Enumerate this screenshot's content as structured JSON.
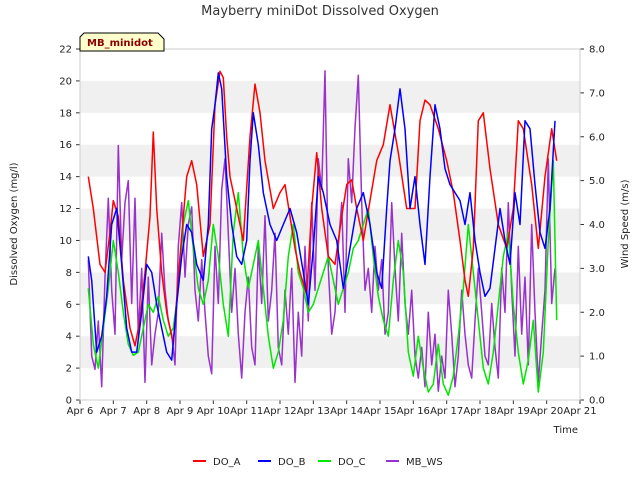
{
  "chart_data": {
    "type": "line",
    "title": "Mayberry miniDot Dissolved Oxygen",
    "site_label": "MB_minidot",
    "xlabel": "Time",
    "ylabel": "Dissolved Oxygen (mg/l)",
    "y2label": "Wind Speed (m/s)",
    "xlim": [
      6,
      21
    ],
    "ylim": [
      0,
      22
    ],
    "y2lim": [
      0,
      8
    ],
    "x_ticks": [
      6,
      7,
      8,
      9,
      10,
      11,
      12,
      13,
      14,
      15,
      16,
      17,
      18,
      19,
      20,
      21
    ],
    "x_tick_labels": [
      "Apr 6",
      "Apr 7",
      "Apr 8",
      "Apr 9",
      "Apr 10",
      "Apr 11",
      "Apr 12",
      "Apr 13",
      "Apr 14",
      "Apr 15",
      "Apr 16",
      "Apr 17",
      "Apr 18",
      "Apr 19",
      "Apr 20",
      "Apr 21"
    ],
    "y_ticks": [
      0,
      2,
      4,
      6,
      8,
      10,
      12,
      14,
      16,
      18,
      20,
      22
    ],
    "y2_ticks": [
      "0.0",
      "1.0",
      "2.0",
      "3.0",
      "4.0",
      "5.0",
      "6.0",
      "7.0",
      "8.0"
    ],
    "grid": "horizontal bands",
    "legend_position": "bottom",
    "series": [
      {
        "name": "DO_A",
        "color": "#ff0000",
        "axis": "left",
        "x": [
          6.25,
          6.4,
          6.6,
          6.75,
          6.9,
          7.0,
          7.15,
          7.3,
          7.5,
          7.65,
          7.8,
          7.95,
          8.1,
          8.2,
          8.3,
          8.45,
          8.6,
          8.8,
          9.0,
          9.2,
          9.35,
          9.5,
          9.7,
          9.9,
          10.05,
          10.2,
          10.3,
          10.4,
          10.5,
          10.7,
          10.9,
          11.1,
          11.25,
          11.4,
          11.55,
          11.8,
          12.0,
          12.15,
          12.3,
          12.45,
          12.6,
          12.8,
          12.95,
          13.1,
          13.25,
          13.45,
          13.65,
          13.85,
          14.0,
          14.15,
          14.3,
          14.5,
          14.7,
          14.9,
          15.1,
          15.3,
          15.55,
          15.8,
          16.05,
          16.2,
          16.35,
          16.5,
          16.75,
          17.0,
          17.2,
          17.4,
          17.55,
          17.65,
          17.8,
          17.95,
          18.1,
          18.3,
          18.55,
          18.8,
          19.0,
          19.15,
          19.3,
          19.55,
          19.75,
          19.95,
          20.15,
          20.3
        ],
        "y": [
          14.0,
          12.0,
          8.5,
          8.0,
          10.5,
          12.5,
          11.5,
          7.5,
          4.5,
          3.4,
          5.0,
          8.0,
          11.5,
          16.8,
          12.0,
          8.0,
          5.5,
          3.5,
          9.0,
          14.0,
          15.0,
          13.5,
          9.0,
          11.0,
          18.5,
          20.6,
          20.2,
          16.5,
          14.0,
          12.0,
          10.0,
          16.5,
          19.8,
          18.0,
          15.0,
          12.0,
          13.0,
          13.5,
          11.5,
          9.5,
          8.0,
          6.6,
          12.0,
          15.5,
          12.0,
          9.0,
          8.5,
          11.5,
          13.5,
          13.8,
          12.0,
          10.0,
          12.5,
          15.0,
          16.0,
          18.5,
          15.5,
          12.0,
          12.0,
          17.5,
          18.8,
          18.5,
          17.0,
          15.0,
          13.0,
          10.0,
          7.5,
          6.5,
          9.5,
          17.5,
          18.0,
          14.5,
          11.0,
          9.5,
          12.0,
          17.5,
          17.0,
          13.5,
          9.5,
          14.0,
          17.0,
          15.0
        ]
      },
      {
        "name": "DO_B",
        "color": "#0000ff",
        "axis": "left",
        "x": [
          6.25,
          6.35,
          6.5,
          6.65,
          6.8,
          6.95,
          7.1,
          7.25,
          7.4,
          7.55,
          7.7,
          7.85,
          8.0,
          8.15,
          8.3,
          8.45,
          8.6,
          8.75,
          8.9,
          9.05,
          9.2,
          9.35,
          9.5,
          9.7,
          9.85,
          9.95,
          10.05,
          10.15,
          10.25,
          10.4,
          10.55,
          10.7,
          10.85,
          11.0,
          11.1,
          11.2,
          11.35,
          11.5,
          11.7,
          11.9,
          12.1,
          12.3,
          12.5,
          12.7,
          12.85,
          13.0,
          13.15,
          13.3,
          13.5,
          13.7,
          13.9,
          14.1,
          14.3,
          14.5,
          14.7,
          14.9,
          15.05,
          15.2,
          15.3,
          15.45,
          15.6,
          15.75,
          15.9,
          16.05,
          16.2,
          16.35,
          16.5,
          16.65,
          16.8,
          16.95,
          17.1,
          17.25,
          17.4,
          17.55,
          17.7,
          17.85,
          18.0,
          18.15,
          18.3,
          18.45,
          18.6,
          18.75,
          18.9,
          19.05,
          19.2,
          19.35,
          19.5,
          19.65,
          19.8,
          19.95,
          20.1,
          20.25
        ],
        "y": [
          9.0,
          7.5,
          3.0,
          4.0,
          6.5,
          11.0,
          12.0,
          8.5,
          4.5,
          3.0,
          3.0,
          5.5,
          8.5,
          8.0,
          6.0,
          4.5,
          3.0,
          2.5,
          6.0,
          9.0,
          11.0,
          10.5,
          8.5,
          7.5,
          11.0,
          17.0,
          18.5,
          20.5,
          19.5,
          14.0,
          11.0,
          9.0,
          8.5,
          10.0,
          15.0,
          18.0,
          16.0,
          13.0,
          11.0,
          10.0,
          11.0,
          12.0,
          10.5,
          8.0,
          6.0,
          9.5,
          14.0,
          13.0,
          11.0,
          10.0,
          7.0,
          9.5,
          12.0,
          13.0,
          11.0,
          8.0,
          7.0,
          12.0,
          15.0,
          17.0,
          19.5,
          17.0,
          12.0,
          14.0,
          11.0,
          8.5,
          14.0,
          18.5,
          17.0,
          14.5,
          13.5,
          13.0,
          12.5,
          11.0,
          13.0,
          10.0,
          8.0,
          6.5,
          7.0,
          9.5,
          12.0,
          10.0,
          8.5,
          13.0,
          11.0,
          17.5,
          17.0,
          13.5,
          10.5,
          9.5,
          12.0,
          17.5
        ]
      },
      {
        "name": "DO_C",
        "color": "#00e600",
        "axis": "left",
        "x": [
          6.25,
          6.4,
          6.55,
          6.7,
          6.85,
          7.0,
          7.15,
          7.3,
          7.45,
          7.6,
          7.75,
          7.9,
          8.05,
          8.2,
          8.35,
          8.5,
          8.65,
          8.8,
          8.95,
          9.1,
          9.25,
          9.4,
          9.55,
          9.7,
          9.85,
          10.0,
          10.15,
          10.3,
          10.45,
          10.6,
          10.75,
          10.9,
          11.05,
          11.2,
          11.35,
          11.5,
          11.65,
          11.8,
          11.95,
          12.1,
          12.25,
          12.4,
          12.55,
          12.7,
          12.85,
          13.0,
          13.15,
          13.3,
          13.45,
          13.6,
          13.75,
          13.9,
          14.05,
          14.2,
          14.35,
          14.5,
          14.65,
          14.8,
          14.95,
          15.1,
          15.25,
          15.4,
          15.55,
          15.7,
          15.85,
          16.0,
          16.15,
          16.3,
          16.45,
          16.6,
          16.75,
          16.9,
          17.05,
          17.2,
          17.35,
          17.5,
          17.65,
          17.8,
          17.95,
          18.1,
          18.25,
          18.4,
          18.55,
          18.7,
          18.85,
          19.0,
          19.15,
          19.3,
          19.45,
          19.6,
          19.75,
          19.9,
          20.05,
          20.2,
          20.3
        ],
        "y": [
          7.0,
          3.5,
          2.0,
          4.5,
          7.0,
          10.0,
          8.0,
          5.5,
          3.5,
          2.8,
          3.0,
          4.5,
          6.0,
          5.5,
          6.5,
          5.0,
          4.0,
          4.5,
          7.0,
          11.0,
          12.5,
          9.5,
          7.0,
          6.0,
          7.5,
          11.0,
          9.0,
          6.0,
          4.0,
          10.5,
          13.0,
          9.0,
          7.0,
          8.5,
          10.0,
          7.0,
          4.0,
          2.0,
          3.0,
          5.0,
          9.0,
          11.0,
          8.0,
          7.0,
          5.5,
          6.0,
          7.0,
          8.0,
          9.0,
          7.5,
          6.0,
          7.0,
          8.0,
          9.5,
          10.0,
          11.0,
          12.0,
          9.0,
          6.5,
          5.0,
          4.0,
          7.5,
          10.0,
          8.0,
          3.0,
          1.5,
          4.0,
          2.0,
          0.5,
          1.0,
          3.5,
          1.0,
          0.3,
          1.5,
          4.0,
          7.0,
          11.0,
          8.0,
          5.0,
          2.0,
          1.0,
          3.0,
          6.0,
          9.0,
          10.5,
          6.0,
          3.0,
          1.0,
          2.5,
          5.0,
          0.5,
          3.0,
          10.0,
          15.0,
          5.0
        ]
      },
      {
        "name": "MB_WS",
        "color": "#9932cc",
        "axis": "right",
        "x": [
          6.25,
          6.35,
          6.45,
          6.55,
          6.65,
          6.75,
          6.85,
          6.95,
          7.05,
          7.15,
          7.25,
          7.35,
          7.45,
          7.55,
          7.65,
          7.75,
          7.85,
          7.95,
          8.05,
          8.15,
          8.25,
          8.35,
          8.45,
          8.55,
          8.65,
          8.75,
          8.85,
          8.95,
          9.05,
          9.15,
          9.25,
          9.35,
          9.45,
          9.55,
          9.65,
          9.75,
          9.85,
          9.95,
          10.05,
          10.15,
          10.25,
          10.35,
          10.45,
          10.55,
          10.65,
          10.75,
          10.85,
          10.95,
          11.05,
          11.15,
          11.25,
          11.35,
          11.45,
          11.55,
          11.65,
          11.75,
          11.85,
          11.95,
          12.05,
          12.15,
          12.25,
          12.35,
          12.45,
          12.55,
          12.65,
          12.75,
          12.85,
          12.95,
          13.05,
          13.15,
          13.25,
          13.35,
          13.45,
          13.55,
          13.65,
          13.75,
          13.85,
          13.95,
          14.05,
          14.15,
          14.25,
          14.35,
          14.45,
          14.55,
          14.65,
          14.75,
          14.85,
          14.95,
          15.05,
          15.15,
          15.25,
          15.35,
          15.45,
          15.55,
          15.65,
          15.75,
          15.85,
          15.95,
          16.05,
          16.15,
          16.25,
          16.35,
          16.45,
          16.55,
          16.65,
          16.75,
          16.85,
          16.95,
          17.05,
          17.15,
          17.25,
          17.35,
          17.45,
          17.55,
          17.65,
          17.75,
          17.85,
          17.95,
          18.05,
          18.15,
          18.25,
          18.35,
          18.45,
          18.55,
          18.65,
          18.75,
          18.85,
          18.95,
          19.05,
          19.15,
          19.25,
          19.35,
          19.45,
          19.55,
          19.65,
          19.75,
          19.85,
          19.95,
          20.05,
          20.15,
          20.25
        ],
        "y": [
          3.2,
          1.0,
          0.7,
          1.8,
          0.3,
          2.8,
          4.6,
          2.5,
          1.5,
          5.8,
          3.2,
          4.5,
          5.0,
          2.2,
          4.6,
          1.5,
          3.0,
          0.4,
          2.8,
          0.8,
          1.5,
          2.0,
          3.8,
          2.5,
          1.8,
          1.5,
          0.8,
          3.5,
          4.5,
          2.8,
          4.0,
          4.4,
          2.5,
          1.8,
          3.2,
          2.0,
          1.0,
          0.6,
          3.5,
          2.2,
          4.8,
          5.5,
          3.8,
          2.0,
          3.0,
          1.5,
          0.5,
          2.0,
          2.8,
          1.2,
          0.8,
          3.5,
          2.2,
          4.2,
          1.8,
          2.5,
          3.8,
          1.2,
          0.8,
          2.5,
          1.5,
          3.0,
          0.4,
          2.0,
          1.0,
          3.5,
          1.8,
          4.5,
          2.5,
          5.5,
          4.8,
          7.5,
          3.0,
          1.5,
          2.0,
          3.5,
          4.5,
          2.0,
          5.5,
          4.5,
          6.2,
          7.4,
          4.5,
          2.5,
          3.0,
          2.0,
          3.5,
          2.5,
          3.2,
          1.5,
          2.0,
          4.5,
          3.0,
          1.8,
          3.8,
          2.2,
          1.5,
          2.5,
          1.0,
          0.5,
          1.2,
          0.3,
          2.0,
          0.8,
          1.5,
          0.2,
          1.0,
          0.5,
          2.5,
          1.5,
          0.3,
          1.0,
          2.5,
          1.5,
          0.8,
          0.5,
          1.8,
          3.0,
          2.0,
          1.0,
          0.8,
          2.2,
          1.2,
          0.5,
          3.0,
          2.0,
          4.5,
          2.5,
          1.0,
          3.5,
          1.5,
          2.8,
          0.8,
          4.0,
          2.0,
          0.4,
          1.5,
          2.5,
          5.5,
          2.2,
          3.0
        ]
      }
    ]
  }
}
